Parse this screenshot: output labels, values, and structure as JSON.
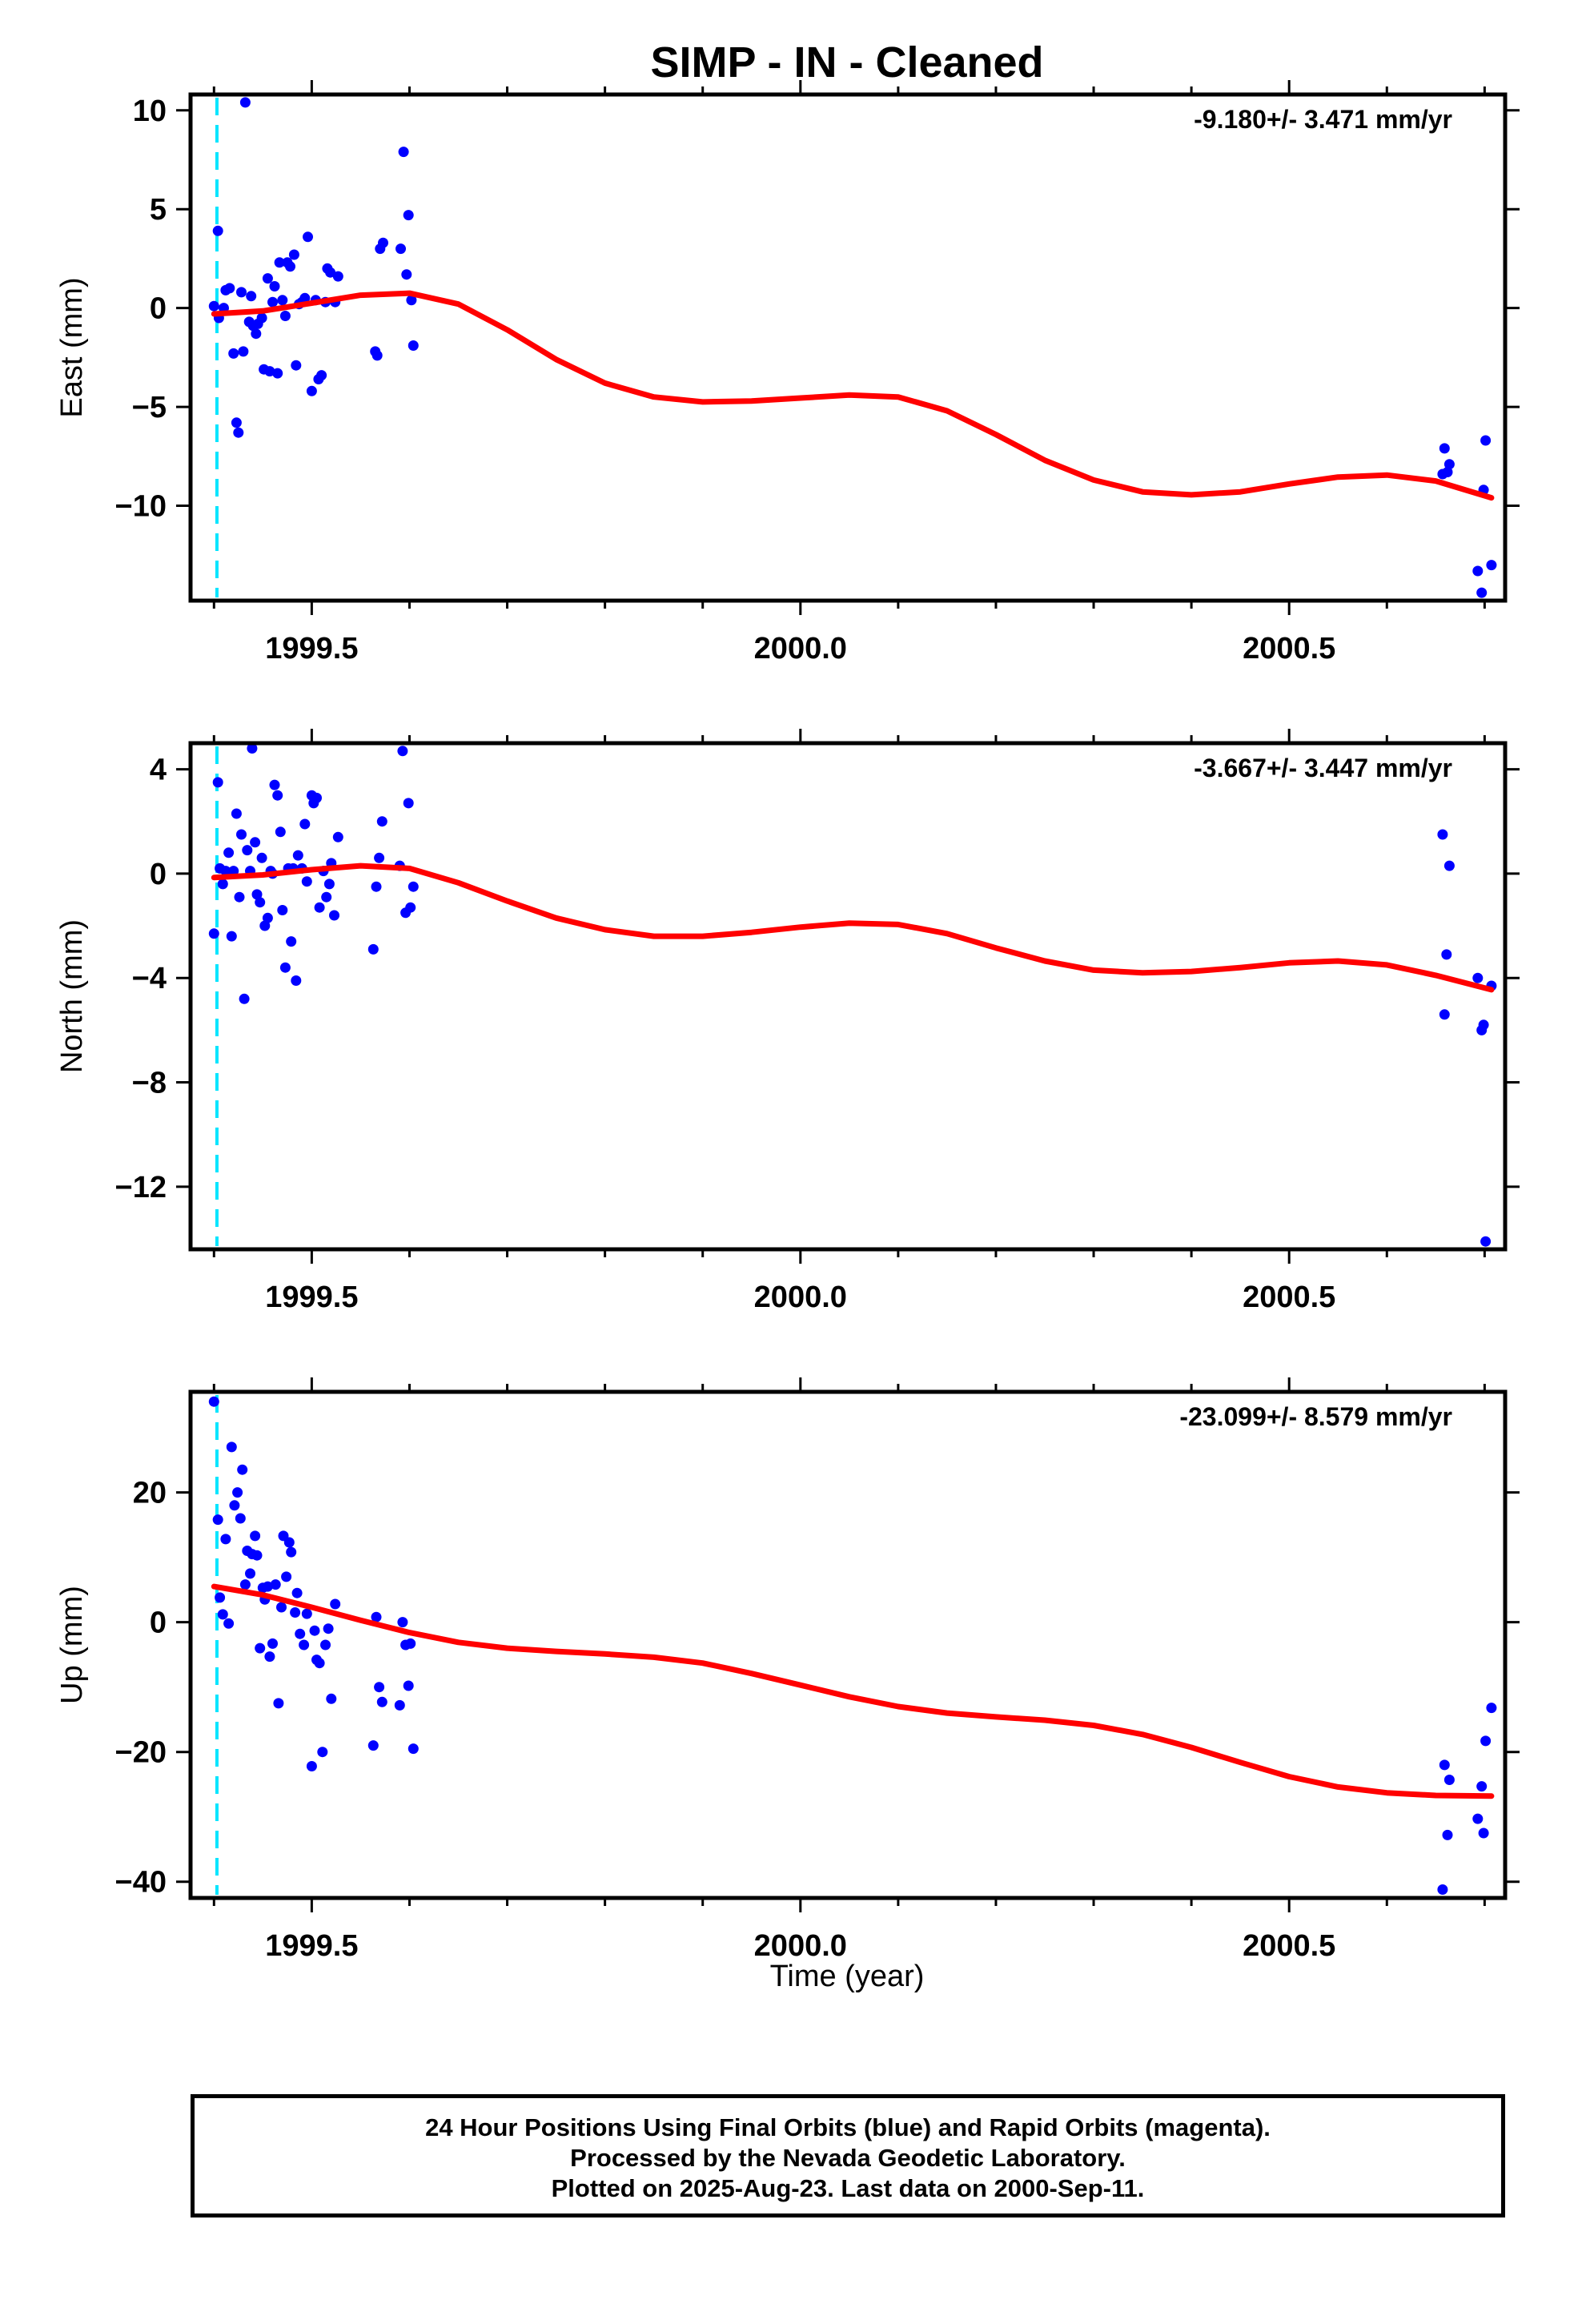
{
  "title": "SIMP  - IN - Cleaned",
  "xlabel": "Time (year)",
  "footer": {
    "line1": "24 Hour Positions Using Final Orbits (blue) and Rapid Orbits (magenta).",
    "line2": "Processed by the Nevada Geodetic Laboratory.",
    "line3": "Plotted on 2025-Aug-23. Last data on 2000-Sep-11."
  },
  "colors": {
    "points": "#0000ff",
    "fit": "#ff0000",
    "event_line": "#00e5ff",
    "frame": "#000000"
  },
  "chart_data": [
    {
      "type": "scatter",
      "panel": "east",
      "ylabel": "East (mm)",
      "annotation": "-9.180+/- 3.471 mm/yr",
      "xlim": [
        1999.376,
        2000.721
      ],
      "ylim": [
        -14.8,
        10.8
      ],
      "xticks": [
        1999.5,
        2000.0,
        2000.5
      ],
      "xtick_labels": [
        "1999.5",
        "2000.0",
        "2000.5"
      ],
      "yticks": [
        10,
        5,
        0,
        -5,
        -10
      ],
      "ytick_labels": [
        "10",
        "5",
        "0",
        "−5",
        "−10"
      ],
      "event_line_x": 1999.403,
      "grid": false,
      "points": [
        [
          1999.4,
          0.1
        ],
        [
          1999.404,
          3.9
        ],
        [
          1999.405,
          -0.5
        ],
        [
          1999.41,
          0
        ],
        [
          1999.412,
          0.9
        ],
        [
          1999.416,
          1
        ],
        [
          1999.42,
          -2.3
        ],
        [
          1999.423,
          -5.8
        ],
        [
          1999.425,
          -6.3
        ],
        [
          1999.428,
          0.8
        ],
        [
          1999.43,
          -2.2
        ],
        [
          1999.432,
          10.4
        ],
        [
          1999.436,
          -0.7
        ],
        [
          1999.438,
          0.6
        ],
        [
          1999.44,
          -0.9
        ],
        [
          1999.443,
          -1.3
        ],
        [
          1999.445,
          -0.8
        ],
        [
          1999.449,
          -0.5
        ],
        [
          1999.451,
          -3.1
        ],
        [
          1999.455,
          1.5
        ],
        [
          1999.457,
          -3.2
        ],
        [
          1999.46,
          0.3
        ],
        [
          1999.462,
          1.1
        ],
        [
          1999.465,
          -3.3
        ],
        [
          1999.467,
          2.3
        ],
        [
          1999.47,
          0.4
        ],
        [
          1999.473,
          -0.4
        ],
        [
          1999.475,
          2.3
        ],
        [
          1999.478,
          2.1
        ],
        [
          1999.482,
          2.7
        ],
        [
          1999.484,
          -2.9
        ],
        [
          1999.487,
          0.2
        ],
        [
          1999.49,
          0.3
        ],
        [
          1999.493,
          0.5
        ],
        [
          1999.496,
          3.6
        ],
        [
          1999.5,
          -4.2
        ],
        [
          1999.504,
          0.4
        ],
        [
          1999.507,
          -3.6
        ],
        [
          1999.51,
          -3.4
        ],
        [
          1999.514,
          0.3
        ],
        [
          1999.516,
          2
        ],
        [
          1999.519,
          1.8
        ],
        [
          1999.524,
          0.3
        ],
        [
          1999.527,
          1.6
        ],
        [
          1999.565,
          -2.2
        ],
        [
          1999.567,
          -2.4
        ],
        [
          1999.57,
          3
        ],
        [
          1999.573,
          3.3
        ],
        [
          1999.591,
          3
        ],
        [
          1999.594,
          7.9
        ],
        [
          1999.597,
          1.7
        ],
        [
          1999.599,
          4.7
        ],
        [
          1999.602,
          0.4
        ],
        [
          1999.604,
          -1.9
        ],
        [
          2000.657,
          -8.4
        ],
        [
          2000.659,
          -7.1
        ],
        [
          2000.662,
          -8.3
        ],
        [
          2000.664,
          -7.9
        ],
        [
          2000.693,
          -13.3
        ],
        [
          2000.697,
          -14.4
        ],
        [
          2000.699,
          -9.2
        ],
        [
          2000.701,
          -6.7
        ],
        [
          2000.707,
          -13
        ]
      ],
      "fit": [
        [
          1999.4,
          -0.3
        ],
        [
          1999.45,
          -0.15
        ],
        [
          1999.5,
          0.25
        ],
        [
          1999.55,
          0.65
        ],
        [
          1999.6,
          0.75
        ],
        [
          1999.65,
          0.2
        ],
        [
          1999.7,
          -1.1
        ],
        [
          1999.75,
          -2.6
        ],
        [
          1999.8,
          -3.8
        ],
        [
          1999.85,
          -4.5
        ],
        [
          1999.9,
          -4.75
        ],
        [
          1999.95,
          -4.7
        ],
        [
          2000.0,
          -4.55
        ],
        [
          2000.05,
          -4.4
        ],
        [
          2000.1,
          -4.5
        ],
        [
          2000.15,
          -5.2
        ],
        [
          2000.2,
          -6.4
        ],
        [
          2000.25,
          -7.7
        ],
        [
          2000.3,
          -8.7
        ],
        [
          2000.35,
          -9.3
        ],
        [
          2000.4,
          -9.45
        ],
        [
          2000.45,
          -9.3
        ],
        [
          2000.5,
          -8.9
        ],
        [
          2000.55,
          -8.55
        ],
        [
          2000.6,
          -8.45
        ],
        [
          2000.65,
          -8.75
        ],
        [
          2000.707,
          -9.6
        ]
      ]
    },
    {
      "type": "scatter",
      "panel": "north",
      "ylabel": "North (mm)",
      "annotation": "-3.667+/- 3.447 mm/yr",
      "xlim": [
        1999.376,
        2000.721
      ],
      "ylim": [
        -14.4,
        5.0
      ],
      "xticks": [
        1999.5,
        2000.0,
        2000.5
      ],
      "xtick_labels": [
        "1999.5",
        "2000.0",
        "2000.5"
      ],
      "yticks": [
        4,
        0,
        -4,
        -8,
        -12
      ],
      "ytick_labels": [
        "4",
        "0",
        "−4",
        "−8",
        "−12"
      ],
      "event_line_x": 1999.403,
      "grid": false,
      "points": [
        [
          1999.4,
          -2.3
        ],
        [
          1999.404,
          3.5
        ],
        [
          1999.406,
          0.2
        ],
        [
          1999.409,
          -0.4
        ],
        [
          1999.412,
          0.1
        ],
        [
          1999.415,
          0.8
        ],
        [
          1999.418,
          -2.4
        ],
        [
          1999.42,
          0.1
        ],
        [
          1999.423,
          2.3
        ],
        [
          1999.426,
          -0.9
        ],
        [
          1999.428,
          1.5
        ],
        [
          1999.431,
          -4.8
        ],
        [
          1999.434,
          0.9
        ],
        [
          1999.437,
          0.1
        ],
        [
          1999.439,
          4.8
        ],
        [
          1999.442,
          1.2
        ],
        [
          1999.444,
          -0.8
        ],
        [
          1999.447,
          -1.1
        ],
        [
          1999.449,
          0.6
        ],
        [
          1999.452,
          -2
        ],
        [
          1999.455,
          -1.7
        ],
        [
          1999.458,
          0.1
        ],
        [
          1999.46,
          0
        ],
        [
          1999.462,
          3.4
        ],
        [
          1999.465,
          3
        ],
        [
          1999.468,
          1.6
        ],
        [
          1999.47,
          -1.4
        ],
        [
          1999.473,
          -3.6
        ],
        [
          1999.476,
          0.2
        ],
        [
          1999.479,
          -2.6
        ],
        [
          1999.481,
          0.2
        ],
        [
          1999.484,
          -4.1
        ],
        [
          1999.486,
          0.7
        ],
        [
          1999.49,
          0.2
        ],
        [
          1999.493,
          1.9
        ],
        [
          1999.495,
          -0.3
        ],
        [
          1999.5,
          3
        ],
        [
          1999.502,
          2.7
        ],
        [
          1999.505,
          2.9
        ],
        [
          1999.508,
          -1.3
        ],
        [
          1999.512,
          0.1
        ],
        [
          1999.515,
          -0.9
        ],
        [
          1999.518,
          -0.4
        ],
        [
          1999.52,
          0.4
        ],
        [
          1999.523,
          -1.6
        ],
        [
          1999.527,
          1.4
        ],
        [
          1999.563,
          -2.9
        ],
        [
          1999.566,
          -0.5
        ],
        [
          1999.569,
          0.6
        ],
        [
          1999.572,
          2
        ],
        [
          1999.59,
          0.3
        ],
        [
          1999.593,
          4.7
        ],
        [
          1999.596,
          -1.5
        ],
        [
          1999.599,
          2.7
        ],
        [
          1999.601,
          -1.3
        ],
        [
          1999.604,
          -0.5
        ],
        [
          2000.657,
          1.5
        ],
        [
          2000.659,
          -5.4
        ],
        [
          2000.661,
          -3.1
        ],
        [
          2000.664,
          0.3
        ],
        [
          2000.693,
          -4
        ],
        [
          2000.697,
          -6
        ],
        [
          2000.699,
          -5.8
        ],
        [
          2000.701,
          -14.1
        ],
        [
          2000.707,
          -4.3
        ]
      ],
      "fit": [
        [
          1999.4,
          -0.15
        ],
        [
          1999.45,
          -0.05
        ],
        [
          1999.5,
          0.15
        ],
        [
          1999.55,
          0.3
        ],
        [
          1999.6,
          0.2
        ],
        [
          1999.65,
          -0.35
        ],
        [
          1999.7,
          -1.05
        ],
        [
          1999.75,
          -1.7
        ],
        [
          1999.8,
          -2.15
        ],
        [
          1999.85,
          -2.4
        ],
        [
          1999.9,
          -2.4
        ],
        [
          1999.95,
          -2.25
        ],
        [
          2000.0,
          -2.05
        ],
        [
          2000.05,
          -1.9
        ],
        [
          2000.1,
          -1.95
        ],
        [
          2000.15,
          -2.3
        ],
        [
          2000.2,
          -2.85
        ],
        [
          2000.25,
          -3.35
        ],
        [
          2000.3,
          -3.7
        ],
        [
          2000.35,
          -3.8
        ],
        [
          2000.4,
          -3.75
        ],
        [
          2000.45,
          -3.6
        ],
        [
          2000.5,
          -3.42
        ],
        [
          2000.55,
          -3.35
        ],
        [
          2000.6,
          -3.5
        ],
        [
          2000.65,
          -3.9
        ],
        [
          2000.707,
          -4.45
        ]
      ]
    },
    {
      "type": "scatter",
      "panel": "up",
      "ylabel": "Up (mm)",
      "annotation": "-23.099+/- 8.579 mm/yr",
      "xlim": [
        1999.376,
        2000.721
      ],
      "ylim": [
        -42.5,
        35.5
      ],
      "xticks": [
        1999.5,
        2000.0,
        2000.5
      ],
      "xtick_labels": [
        "1999.5",
        "2000.0",
        "2000.5"
      ],
      "yticks": [
        20,
        0,
        -20,
        -40
      ],
      "ytick_labels": [
        "20",
        "0",
        "−20",
        "−40"
      ],
      "event_line_x": 1999.403,
      "grid": false,
      "points": [
        [
          1999.4,
          34
        ],
        [
          1999.404,
          15.8
        ],
        [
          1999.406,
          3.8
        ],
        [
          1999.409,
          1.2
        ],
        [
          1999.412,
          12.8
        ],
        [
          1999.415,
          -0.2
        ],
        [
          1999.418,
          27
        ],
        [
          1999.421,
          18
        ],
        [
          1999.424,
          20
        ],
        [
          1999.427,
          16
        ],
        [
          1999.429,
          23.5
        ],
        [
          1999.432,
          5.8
        ],
        [
          1999.434,
          11
        ],
        [
          1999.437,
          7.5
        ],
        [
          1999.439,
          10.5
        ],
        [
          1999.442,
          13.3
        ],
        [
          1999.444,
          10.3
        ],
        [
          1999.447,
          -4
        ],
        [
          1999.45,
          5.3
        ],
        [
          1999.452,
          3.5
        ],
        [
          1999.455,
          5.5
        ],
        [
          1999.457,
          -5.3
        ],
        [
          1999.46,
          -3.3
        ],
        [
          1999.463,
          5.8
        ],
        [
          1999.466,
          -12.5
        ],
        [
          1999.469,
          2.3
        ],
        [
          1999.471,
          13.3
        ],
        [
          1999.474,
          7
        ],
        [
          1999.477,
          12.3
        ],
        [
          1999.479,
          10.8
        ],
        [
          1999.483,
          1.5
        ],
        [
          1999.485,
          4.5
        ],
        [
          1999.488,
          -1.8
        ],
        [
          1999.492,
          -3.5
        ],
        [
          1999.495,
          1.3
        ],
        [
          1999.5,
          -22.2
        ],
        [
          1999.503,
          -1.3
        ],
        [
          1999.505,
          -5.8
        ],
        [
          1999.508,
          -6.3
        ],
        [
          1999.511,
          -20
        ],
        [
          1999.514,
          -3.5
        ],
        [
          1999.517,
          -1
        ],
        [
          1999.52,
          -11.8
        ],
        [
          1999.524,
          2.8
        ],
        [
          1999.563,
          -19
        ],
        [
          1999.566,
          0.8
        ],
        [
          1999.569,
          -10
        ],
        [
          1999.572,
          -12.3
        ],
        [
          1999.59,
          -12.8
        ],
        [
          1999.593,
          0
        ],
        [
          1999.596,
          -3.5
        ],
        [
          1999.599,
          -9.8
        ],
        [
          1999.601,
          -3.3
        ],
        [
          1999.604,
          -19.5
        ],
        [
          2000.657,
          -41.2
        ],
        [
          2000.659,
          -22
        ],
        [
          2000.662,
          -32.8
        ],
        [
          2000.664,
          -24.3
        ],
        [
          2000.693,
          -30.3
        ],
        [
          2000.697,
          -25.3
        ],
        [
          2000.699,
          -32.5
        ],
        [
          2000.701,
          -18.3
        ],
        [
          2000.707,
          -13.2
        ]
      ],
      "fit": [
        [
          1999.4,
          5.5
        ],
        [
          1999.45,
          4.2
        ],
        [
          1999.5,
          2.3
        ],
        [
          1999.55,
          0.3
        ],
        [
          1999.6,
          -1.6
        ],
        [
          1999.65,
          -3.1
        ],
        [
          1999.7,
          -4
        ],
        [
          1999.75,
          -4.5
        ],
        [
          1999.8,
          -4.9
        ],
        [
          1999.85,
          -5.4
        ],
        [
          1999.9,
          -6.3
        ],
        [
          1999.95,
          -7.9
        ],
        [
          2000.0,
          -9.7
        ],
        [
          2000.05,
          -11.5
        ],
        [
          2000.1,
          -13
        ],
        [
          2000.15,
          -14
        ],
        [
          2000.2,
          -14.6
        ],
        [
          2000.25,
          -15.1
        ],
        [
          2000.3,
          -15.9
        ],
        [
          2000.35,
          -17.3
        ],
        [
          2000.4,
          -19.3
        ],
        [
          2000.45,
          -21.6
        ],
        [
          2000.5,
          -23.8
        ],
        [
          2000.55,
          -25.4
        ],
        [
          2000.6,
          -26.3
        ],
        [
          2000.65,
          -26.7
        ],
        [
          2000.707,
          -26.8
        ]
      ]
    }
  ]
}
